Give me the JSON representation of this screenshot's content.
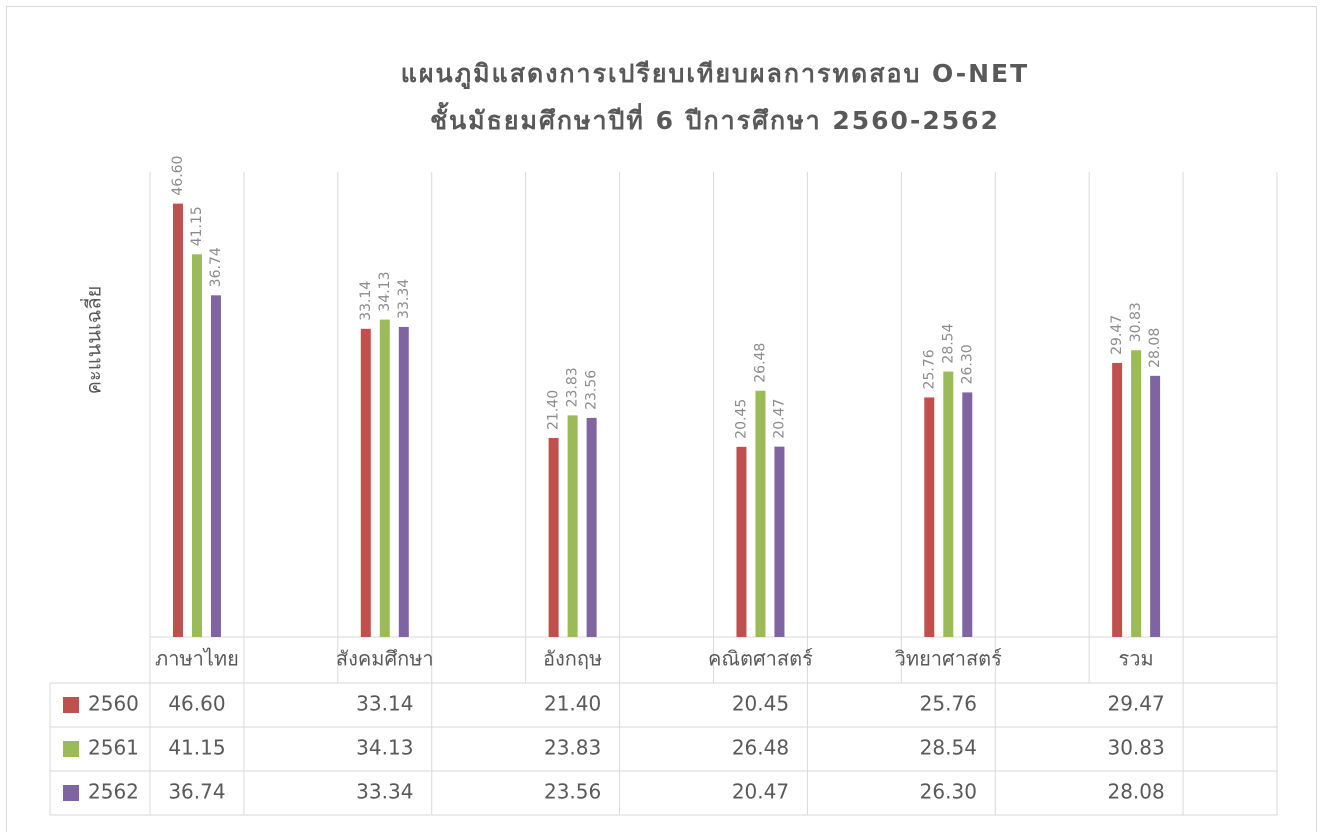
{
  "chart_data": {
    "type": "bar",
    "title": "แผนภูมิแสดงการเปรียบเทียบผลการทดสอบ O-NET",
    "subtitle": "ชั้นมัธยมศึกษาปีที่ 6  ปีการศึกษา 2560-2562",
    "y_label": "คะแนนเฉลี่ย",
    "categories": [
      "ภาษาไทย",
      null,
      "สังคมศึกษา",
      null,
      "อังกฤษ",
      null,
      "คณิตศาสตร์",
      null,
      "วิทยาศาสตร์",
      null,
      "รวม",
      null
    ],
    "series": [
      {
        "name": "2560",
        "color": "#c0504d",
        "values": [
          46.6,
          null,
          33.14,
          null,
          21.4,
          null,
          20.45,
          null,
          25.76,
          null,
          29.47,
          null
        ],
        "value_labels": [
          "46.60",
          null,
          "33.14",
          null,
          "21.40",
          null,
          "20.45",
          null,
          "25.76",
          null,
          "29.47",
          null
        ]
      },
      {
        "name": "2561",
        "color": "#9bbb59",
        "values": [
          41.15,
          null,
          34.13,
          null,
          23.83,
          null,
          26.48,
          null,
          28.54,
          null,
          30.83,
          null
        ],
        "value_labels": [
          "41.15",
          null,
          "34.13",
          null,
          "23.83",
          null,
          "26.48",
          null,
          "28.54",
          null,
          "30.83",
          null
        ]
      },
      {
        "name": "2562",
        "color": "#8064a2",
        "values": [
          36.74,
          null,
          33.34,
          null,
          23.56,
          null,
          20.47,
          null,
          26.3,
          null,
          28.08,
          null
        ],
        "value_labels": [
          "36.74",
          null,
          "33.34",
          null,
          "23.56",
          null,
          "20.47",
          null,
          "26.30",
          null,
          "28.08",
          null
        ]
      }
    ],
    "ylim": [
      0,
      50
    ],
    "data_table": true
  }
}
